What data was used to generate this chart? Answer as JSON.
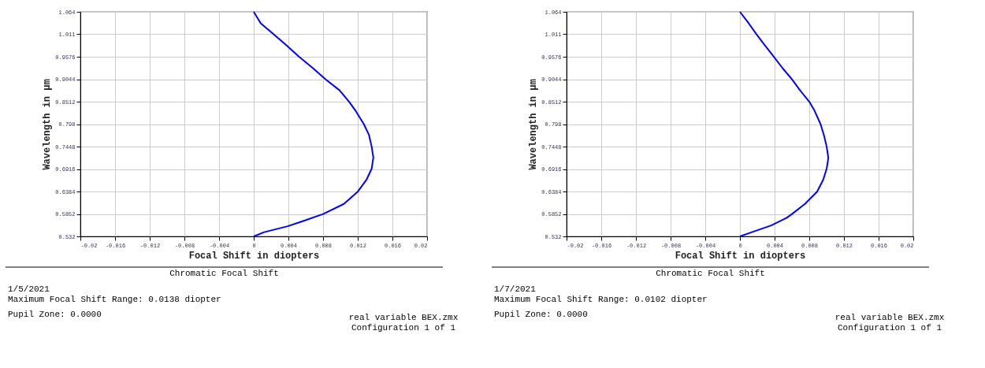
{
  "chart_data": [
    {
      "type": "line",
      "title": "Chromatic Focal Shift",
      "xlabel": "Focal Shift in diopters",
      "ylabel": "Wavelength in µm",
      "series": [
        {
          "color": "#0000ff",
          "x": [
            0,
            0.0012,
            0.0039,
            0.0055,
            0.008,
            0.0104,
            0.012,
            0.013,
            0.0136,
            0.0138,
            0.0136,
            0.0133,
            0.0127,
            0.0118,
            0.011,
            0.0099,
            0.0083,
            0.0068,
            0.0052,
            0.0038,
            0.0023,
            0.0008,
            0
          ],
          "values": [
            0.532,
            0.542,
            0.556,
            0.567,
            0.585,
            0.609,
            0.638,
            0.666,
            0.692,
            0.719,
            0.745,
            0.772,
            0.798,
            0.828,
            0.851,
            0.878,
            0.904,
            0.931,
            0.958,
            0.984,
            1.011,
            1.037,
            1.064
          ]
        }
      ],
      "xlim": [
        -0.02,
        0.02
      ],
      "xticks": [
        -0.02,
        -0.016,
        -0.012,
        -0.008,
        -0.004,
        0,
        0.004,
        0.008,
        0.012,
        0.016,
        0.02
      ],
      "ylim": [
        0.532,
        1.064
      ],
      "yticks": [
        0.532,
        0.5852,
        0.6384,
        0.6916,
        0.7448,
        0.798,
        0.8512,
        0.9044,
        0.9576,
        1.011,
        1.064
      ],
      "grid": true,
      "marker": "none",
      "line_style": "solid",
      "annotations": [
        "1/5/2021",
        "Maximum Focal Shift Range: 0.0138 diopter",
        "Pupil Zone: 0.0000",
        "real variable BEX.zmx",
        "Configuration 1 of 1"
      ]
    },
    {
      "type": "line",
      "title": "Chromatic Focal Shift",
      "xlabel": "Focal Shift in diopters",
      "ylabel": "Wavelength in µm",
      "series": [
        {
          "color": "#0000ff",
          "x": [
            0,
            0.0015,
            0.0036,
            0.0054,
            0.006,
            0.0075,
            0.0089,
            0.0096,
            0.01,
            0.0102,
            0.01,
            0.0097,
            0.0093,
            0.0086,
            0.008,
            0.0069,
            0.006,
            0.0049,
            0.0039,
            0.0029,
            0.0019,
            0.001,
            0
          ],
          "values": [
            0.532,
            0.543,
            0.558,
            0.576,
            0.585,
            0.609,
            0.638,
            0.666,
            0.692,
            0.718,
            0.745,
            0.771,
            0.798,
            0.83,
            0.851,
            0.879,
            0.904,
            0.931,
            0.958,
            0.984,
            1.011,
            1.037,
            1.064
          ]
        }
      ],
      "xlim": [
        -0.02,
        0.02
      ],
      "xticks": [
        -0.02,
        -0.016,
        -0.012,
        -0.008,
        -0.004,
        0,
        0.004,
        0.008,
        0.012,
        0.016,
        0.02
      ],
      "ylim": [
        0.532,
        1.064
      ],
      "yticks": [
        0.532,
        0.5852,
        0.6384,
        0.6916,
        0.7448,
        0.798,
        0.8512,
        0.9044,
        0.9576,
        1.011,
        1.064
      ],
      "grid": true,
      "marker": "none",
      "line_style": "solid",
      "annotations": [
        "1/7/2021",
        "Maximum Focal Shift Range: 0.0102 diopter",
        "Pupil Zone: 0.0000",
        "real variable BEX.zmx",
        "Configuration 1 of 1"
      ]
    }
  ]
}
